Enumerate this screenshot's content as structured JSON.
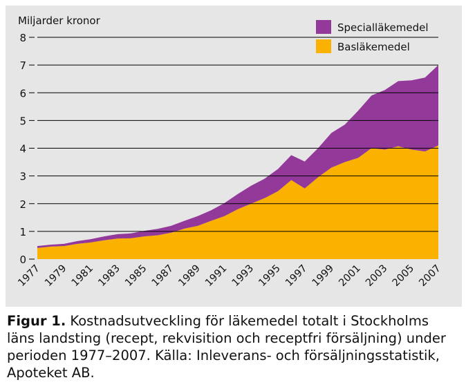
{
  "chart_data": {
    "type": "area",
    "stacked": true,
    "ylabel": "Miljarder kronor",
    "xlabel": "",
    "ylim": [
      0,
      8
    ],
    "yticks": [
      0,
      1,
      2,
      3,
      4,
      5,
      6,
      7,
      8
    ],
    "x": [
      1977,
      1978,
      1979,
      1980,
      1981,
      1982,
      1983,
      1984,
      1985,
      1986,
      1987,
      1988,
      1989,
      1990,
      1991,
      1992,
      1993,
      1994,
      1995,
      1996,
      1997,
      1998,
      1999,
      2000,
      2001,
      2002,
      2003,
      2004,
      2005,
      2006,
      2007
    ],
    "xtick_labels": [
      "1977",
      "1979",
      "1981",
      "1983",
      "1985",
      "1987",
      "1989",
      "1991",
      "1993",
      "1995",
      "1997",
      "1999",
      "2001",
      "2003",
      "2005",
      "2007"
    ],
    "grid": "horizontal",
    "legend_position": "top-right",
    "series": [
      {
        "name": "Basläkemedel",
        "color": "#fbb100",
        "values": [
          0.4,
          0.45,
          0.47,
          0.55,
          0.6,
          0.68,
          0.74,
          0.75,
          0.82,
          0.86,
          0.95,
          1.1,
          1.2,
          1.38,
          1.55,
          1.8,
          2.0,
          2.2,
          2.45,
          2.85,
          2.55,
          2.95,
          3.3,
          3.5,
          3.65,
          4.0,
          3.95,
          4.07,
          3.95,
          3.88,
          4.1
        ]
      },
      {
        "name": "Specialläkemedel",
        "color": "#93399a",
        "values": [
          0.07,
          0.07,
          0.08,
          0.1,
          0.12,
          0.14,
          0.16,
          0.18,
          0.2,
          0.23,
          0.25,
          0.28,
          0.35,
          0.38,
          0.47,
          0.55,
          0.65,
          0.7,
          0.8,
          0.9,
          0.97,
          1.05,
          1.25,
          1.35,
          1.7,
          1.9,
          2.15,
          2.35,
          2.5,
          2.67,
          2.9
        ]
      }
    ]
  },
  "caption": {
    "label": "Figur 1.",
    "text": " Kostnadsutveckling för läkemedel totalt i Stockholms läns landsting (recept, rekvisition och receptfri försäljning) under perioden 1977–2007. Källa: Inleverans- och försäljningsstatistik, Apoteket AB."
  }
}
